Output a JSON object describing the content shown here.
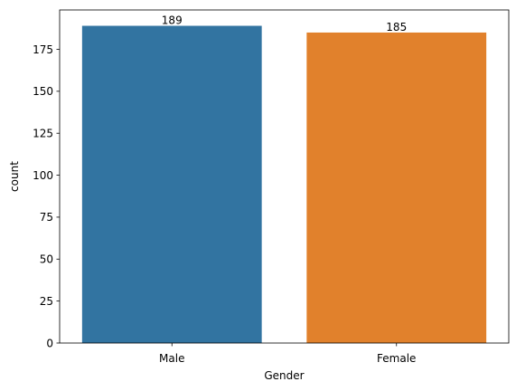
{
  "chart_data": {
    "type": "bar",
    "categories": [
      "Male",
      "Female"
    ],
    "values": [
      189,
      185
    ],
    "data_labels": [
      "189",
      "185"
    ],
    "colors": [
      "#3274a1",
      "#e1812c"
    ],
    "title": "",
    "xlabel": "Gender",
    "ylabel": "count",
    "ylim": [
      0,
      198.45
    ],
    "yticks": [
      0,
      25,
      50,
      75,
      100,
      125,
      150,
      175
    ],
    "grid": false,
    "legend": "none"
  }
}
